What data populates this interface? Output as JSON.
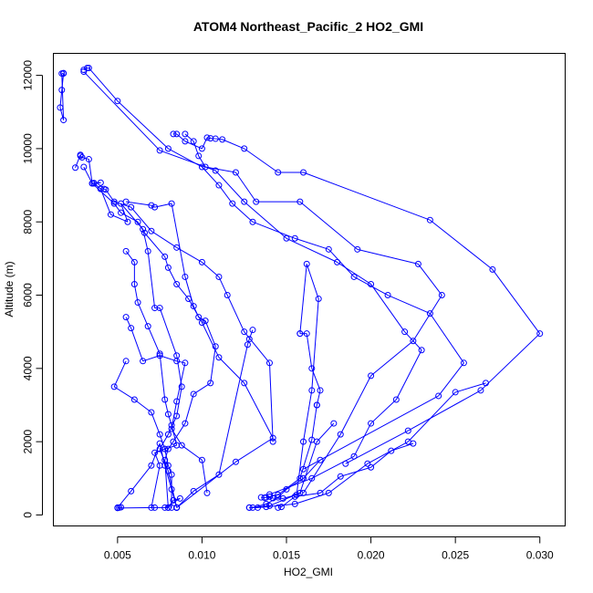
{
  "chart_data": {
    "type": "scatter",
    "title": "ATOM4 Northeast_Pacific_2 HO2_GMI",
    "xlabel": "HO2_GMI",
    "ylabel": "Altitude (m)",
    "xlim": [
      0.0012,
      0.0315
    ],
    "ylim": [
      -300,
      12600
    ],
    "xticks": [
      0.005,
      0.01,
      0.015,
      0.02,
      0.025,
      0.03
    ],
    "xtick_labels": [
      "0.005",
      "0.010",
      "0.015",
      "0.020",
      "0.025",
      "0.030"
    ],
    "yticks": [
      0,
      2000,
      4000,
      6000,
      8000,
      10000,
      12000
    ],
    "ytick_labels": [
      "0",
      "2000",
      "4000",
      "6000",
      "8000",
      "10000",
      "12000"
    ],
    "grid": false,
    "marker": "open-circle",
    "line_color": "#0000ff",
    "series": [
      {
        "name": "",
        "x": [
          0.0018,
          0.0017,
          0.0016,
          0.0018,
          0.0017,
          0.0018
        ],
        "y": [
          12050,
          11600,
          11120,
          10780,
          12050,
          12060
        ]
      },
      {
        "name": "",
        "x": [
          0.003,
          0.0032,
          0.0033,
          0.005,
          0.008,
          0.01,
          0.011,
          0.0118,
          0.013,
          0.0155,
          0.0175,
          0.019,
          0.021,
          0.0235,
          0.0255,
          0.024,
          0.016
        ],
        "y": [
          12150,
          12200,
          12200,
          11300,
          10000,
          9500,
          9000,
          8500,
          8000,
          7550,
          7250,
          6500,
          6000,
          5500,
          4150,
          3250,
          1250
        ]
      },
      {
        "name": "",
        "x": [
          0.003,
          0.0075,
          0.0108,
          0.0125,
          0.015,
          0.018,
          0.02,
          0.022,
          0.023,
          0.0215,
          0.02,
          0.019,
          0.0165,
          0.014
        ],
        "y": [
          12100,
          9950,
          9400,
          8550,
          7550,
          6900,
          6300,
          5000,
          4500,
          3150,
          2500,
          1600,
          1000,
          560
        ]
      },
      {
        "name": "",
        "x": [
          0.0083,
          0.0085,
          0.009,
          0.01,
          0.0103,
          0.0105,
          0.0108,
          0.0112,
          0.0125,
          0.0145,
          0.016,
          0.0235,
          0.0272,
          0.03,
          0.0265,
          0.0222,
          0.0185
        ],
        "y": [
          10400,
          10400,
          10200,
          10000,
          10300,
          10280,
          10270,
          10250,
          10000,
          9350,
          9350,
          8050,
          6700,
          4950,
          3400,
          2300,
          1400
        ]
      },
      {
        "name": "",
        "x": [
          0.009,
          0.0095,
          0.0098,
          0.0102,
          0.012,
          0.0132,
          0.0158,
          0.0192,
          0.0228,
          0.0242,
          0.0225,
          0.02,
          0.0182,
          0.016
        ],
        "y": [
          10400,
          10200,
          9800,
          9500,
          9350,
          8550,
          8550,
          7250,
          6850,
          6000,
          4750,
          3800,
          2200,
          600
        ]
      },
      {
        "name": "",
        "x": [
          0.0025,
          0.0028,
          0.0028,
          0.0029,
          0.0033,
          0.0035,
          0.0036,
          0.004,
          0.0036,
          0.004,
          0.0042,
          0.0043,
          0.0048,
          0.0058,
          0.007,
          0.0085,
          0.01,
          0.011,
          0.0115,
          0.0125,
          0.014,
          0.0142
        ],
        "y": [
          9480,
          9830,
          9800,
          9760,
          9710,
          9050,
          9060,
          9070,
          9050,
          8900,
          8900,
          8880,
          8550,
          8400,
          7750,
          7300,
          6900,
          6500,
          6000,
          5000,
          4150,
          2000
        ]
      },
      {
        "name": "",
        "x": [
          0.003,
          0.0035,
          0.0048,
          0.0052,
          0.0062,
          0.0066,
          0.0078,
          0.008,
          0.0085,
          0.0092,
          0.01,
          0.011,
          0.0125,
          0.0142,
          0.012,
          0.0085
        ],
        "y": [
          9500,
          9050,
          8500,
          8250,
          8000,
          7700,
          7050,
          6750,
          6300,
          5900,
          5250,
          4300,
          3600,
          2100,
          1450,
          200
        ]
      },
      {
        "name": "",
        "x": [
          0.004,
          0.0046,
          0.0056,
          0.0052,
          0.0065,
          0.0068,
          0.0072,
          0.0075,
          0.0085,
          0.0088,
          0.0085,
          0.008,
          0.0075,
          0.008,
          0.0085
        ],
        "y": [
          8900,
          8200,
          8000,
          8500,
          7800,
          7200,
          5650,
          5650,
          4350,
          3500,
          2700,
          2200,
          1800,
          1200,
          200
        ]
      },
      {
        "name": "",
        "x": [
          0.0055,
          0.006,
          0.006,
          0.0062,
          0.0068,
          0.0075,
          0.0078,
          0.008,
          0.0082,
          0.0085,
          0.0078,
          0.0072,
          0.0075,
          0.007
        ],
        "y": [
          7200,
          6900,
          6300,
          5800,
          5150,
          4400,
          3150,
          2750,
          2450,
          1900,
          1800,
          1700,
          1350,
          200
        ]
      },
      {
        "name": "",
        "x": [
          0.0055,
          0.007,
          0.0072,
          0.0082,
          0.009,
          0.0095,
          0.0098,
          0.0102,
          0.0108,
          0.0105,
          0.0095,
          0.009,
          0.0083,
          0.008,
          0.0078,
          0.008
        ],
        "y": [
          8550,
          8450,
          8400,
          8500,
          6500,
          5700,
          5400,
          5300,
          4600,
          3600,
          3300,
          2500,
          2000,
          1800,
          1500,
          200
        ]
      },
      {
        "name": "",
        "x": [
          0.0055,
          0.0058,
          0.0065,
          0.0075,
          0.0085,
          0.009,
          0.0085,
          0.0082,
          0.0088,
          0.01,
          0.0103
        ],
        "y": [
          5400,
          5100,
          4200,
          4350,
          4200,
          4150,
          3100,
          2350,
          1900,
          1500,
          600
        ]
      },
      {
        "name": "",
        "x": [
          0.0055,
          0.0048,
          0.006,
          0.007,
          0.0075,
          0.0078,
          0.008,
          0.0082,
          0.0082
        ],
        "y": [
          4200,
          3500,
          3150,
          2800,
          2200,
          1800,
          1350,
          1100,
          200
        ]
      },
      {
        "name": "",
        "x": [
          0.005,
          0.0058,
          0.007,
          0.0075,
          0.0078,
          0.0082,
          0.0085
        ],
        "y": [
          200,
          650,
          1350,
          1950,
          1350,
          700,
          200
        ]
      },
      {
        "name": "",
        "x": [
          0.0051,
          0.0052,
          0.005,
          0.0072,
          0.008,
          0.0083,
          0.0087,
          0.0078
        ],
        "y": [
          200,
          210,
          190,
          200,
          200,
          400,
          450,
          200
        ]
      },
      {
        "name": "",
        "x": [
          0.0085,
          0.0095,
          0.011,
          0.0127,
          0.0128,
          0.013
        ],
        "y": [
          200,
          650,
          1100,
          4650,
          4800,
          5050
        ]
      },
      {
        "name": "",
        "x": [
          0.0128,
          0.014,
          0.0158,
          0.0168,
          0.0178
        ],
        "y": [
          200,
          250,
          600,
          2000,
          2500
        ]
      },
      {
        "name": "",
        "x": [
          0.013,
          0.0138,
          0.0145,
          0.015,
          0.016,
          0.017
        ],
        "y": [
          200,
          300,
          480,
          700,
          1000,
          1500
        ]
      },
      {
        "name": "",
        "x": [
          0.0135,
          0.0137,
          0.014,
          0.0145,
          0.0158,
          0.0165,
          0.0168,
          0.0168,
          0.017,
          0.0165,
          0.0162,
          0.0158
        ],
        "y": [
          480,
          470,
          500,
          550,
          1000,
          2050,
          3000,
          3000,
          3400,
          4000,
          4950,
          4950
        ]
      },
      {
        "name": "",
        "x": [
          0.0145,
          0.0147,
          0.0155,
          0.017,
          0.0182,
          0.02,
          0.0212,
          0.0225
        ],
        "y": [
          200,
          220,
          500,
          600,
          1050,
          1300,
          1750,
          1950
        ]
      },
      {
        "name": "",
        "x": [
          0.0138,
          0.0142,
          0.0148,
          0.0156,
          0.016,
          0.0165,
          0.0169,
          0.0162,
          0.0158
        ],
        "y": [
          480,
          460,
          450,
          550,
          2000,
          3400,
          5900,
          6850,
          4950
        ]
      },
      {
        "name": "",
        "x": [
          0.0128,
          0.0133,
          0.0138,
          0.0155,
          0.0175,
          0.0198,
          0.0222,
          0.025,
          0.0268
        ],
        "y": [
          200,
          200,
          220,
          300,
          600,
          1400,
          2000,
          3350,
          3600
        ]
      }
    ]
  }
}
